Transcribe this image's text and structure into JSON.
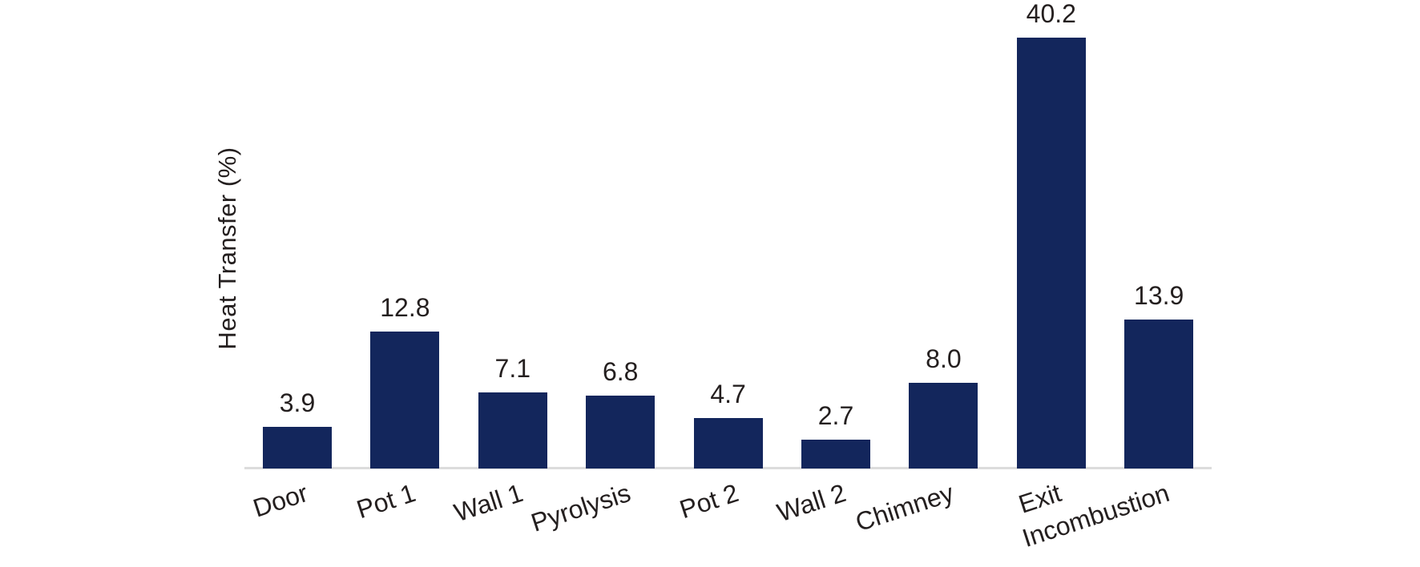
{
  "chart_data": {
    "type": "bar",
    "title": "",
    "xlabel": "",
    "ylabel": "Heat Transfer (%)",
    "categories": [
      "Door",
      "Pot 1",
      "Wall 1",
      "Pyrolysis",
      "Pot 2",
      "Wall 2",
      "Chimney",
      "Exit",
      "Incombustion"
    ],
    "values": [
      3.9,
      12.8,
      7.1,
      6.8,
      4.7,
      2.7,
      8.0,
      40.2,
      13.9
    ],
    "bar_value_labels": [
      "3.9",
      "12.8",
      "7.1",
      "6.8",
      "4.7",
      "2.7",
      "8.0",
      "40.2",
      "13.9"
    ],
    "ylim": [
      0,
      42
    ],
    "grid": false,
    "legend": null,
    "xtick_rotation_deg": -18,
    "colors": {
      "bar_fill": "#13265c",
      "axis_line": "#dcdcdc",
      "text": "#241f1f",
      "background": "#ffffff"
    }
  }
}
